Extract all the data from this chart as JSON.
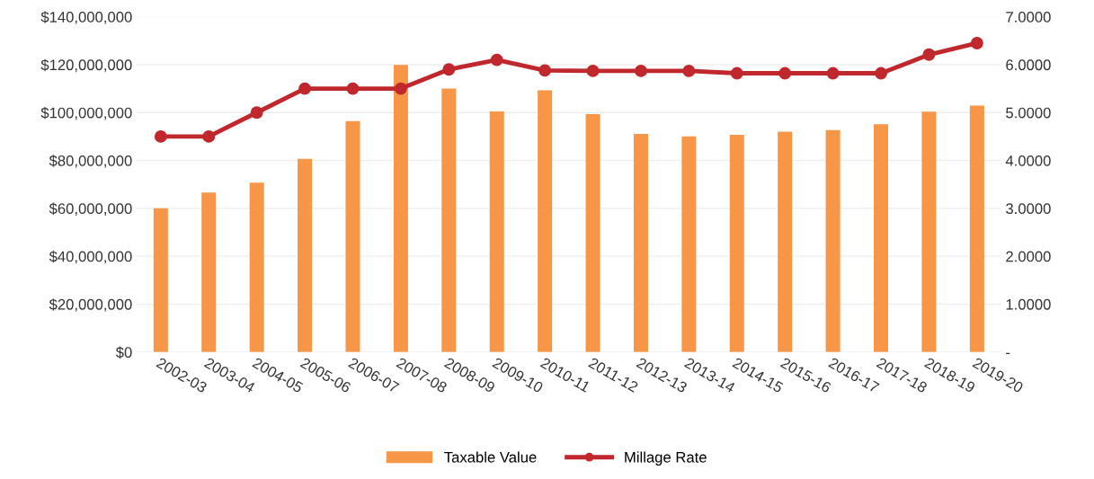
{
  "chart_data": {
    "type": "bar",
    "categories": [
      "2002-03",
      "2003-04",
      "2004-05",
      "2005-06",
      "2006-07",
      "2007-08",
      "2008-09",
      "2009-10",
      "2010-11",
      "2011-12",
      "2012-13",
      "2013-14",
      "2014-15",
      "2015-16",
      "2016-17",
      "2017-18",
      "2018-19",
      "2019-20"
    ],
    "series": [
      {
        "name": "Taxable Value",
        "color": "#f79646",
        "values": [
          60000000,
          66600000,
          70700000,
          80700000,
          96400000,
          119900000,
          110000000,
          100500000,
          109300000,
          99300000,
          91100000,
          90100000,
          90700000,
          92000000,
          92700000,
          95100000,
          100400000,
          102900000
        ]
      },
      {
        "name": "Millage Rate",
        "type": "line",
        "axis": "y2",
        "color": "#c0282d",
        "marker": "circle",
        "values": [
          4.5,
          4.5,
          5.0,
          5.5,
          5.5,
          5.5,
          5.9,
          6.1,
          5.88,
          5.87,
          5.87,
          5.87,
          5.82,
          5.82,
          5.82,
          5.82,
          6.21,
          6.45
        ]
      }
    ],
    "ylim": [
      0,
      140000000
    ],
    "yticks": [
      {
        "value": 0,
        "label": "$0"
      },
      {
        "value": 20000000,
        "label": "$20,000,000"
      },
      {
        "value": 40000000,
        "label": "$40,000,000"
      },
      {
        "value": 60000000,
        "label": "$60,000,000"
      },
      {
        "value": 80000000,
        "label": "$80,000,000"
      },
      {
        "value": 100000000,
        "label": "$100,000,000"
      },
      {
        "value": 120000000,
        "label": "$120,000,000"
      },
      {
        "value": 140000000,
        "label": "$140,000,000"
      }
    ],
    "y2lim": [
      0,
      7
    ],
    "y2ticks": [
      {
        "value": 0,
        "label": "-"
      },
      {
        "value": 1,
        "label": "1.0000"
      },
      {
        "value": 2,
        "label": "2.0000"
      },
      {
        "value": 3,
        "label": "3.0000"
      },
      {
        "value": 4,
        "label": "4.0000"
      },
      {
        "value": 5,
        "label": "5.0000"
      },
      {
        "value": 6,
        "label": "6.0000"
      },
      {
        "value": 7,
        "label": "7.0000"
      }
    ],
    "grid": "y",
    "legend": "bottom"
  }
}
